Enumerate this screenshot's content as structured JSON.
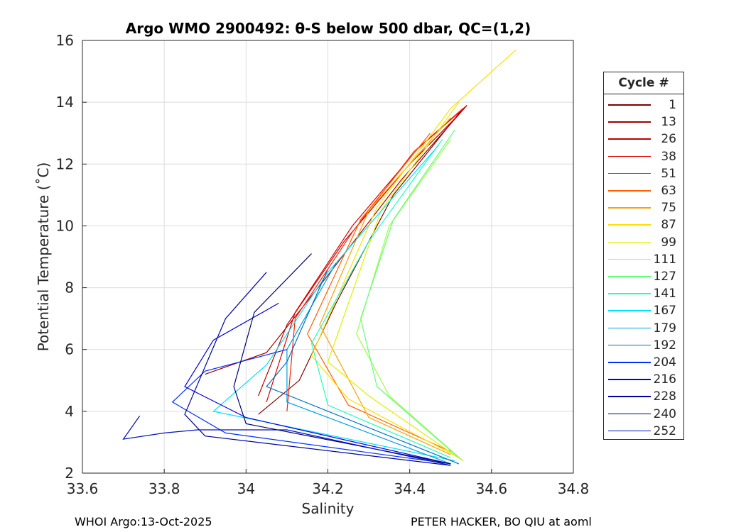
{
  "chart_data": {
    "type": "line",
    "title": "Argo WMO 2900492: θ-S below 500 dbar,  QC=(1,2)",
    "xlabel": "Salinity",
    "ylabel": "Potential Temperature (˚C)",
    "xlim": [
      33.6,
      34.8
    ],
    "ylim": [
      2,
      16
    ],
    "xticks": [
      "33.6",
      "33.8",
      "34",
      "34.2",
      "34.4",
      "34.6",
      "34.8"
    ],
    "yticks": [
      "2",
      "4",
      "6",
      "8",
      "10",
      "12",
      "14",
      "16"
    ],
    "grid": true,
    "legend": {
      "title": "Cycle #",
      "placement": "right outside",
      "entries": [
        "1",
        "13",
        "26",
        "38",
        "51",
        "63",
        "75",
        "87",
        "99",
        "111",
        "127",
        "141",
        "167",
        "179",
        "192",
        "204",
        "216",
        "228",
        "240",
        "252"
      ]
    },
    "series": [
      {
        "name": "1",
        "color": "#800000",
        "points": [
          [
            34.03,
            3.9
          ],
          [
            34.13,
            5.0
          ],
          [
            34.22,
            7.5
          ],
          [
            34.36,
            11.0
          ],
          [
            34.53,
            13.8
          ]
        ]
      },
      {
        "name": "13",
        "color": "#a00000",
        "points": [
          [
            33.9,
            5.2
          ],
          [
            34.05,
            5.9
          ],
          [
            34.2,
            8.4
          ],
          [
            34.38,
            11.5
          ],
          [
            34.54,
            13.9
          ]
        ]
      },
      {
        "name": "26",
        "color": "#c00000",
        "points": [
          [
            34.03,
            4.5
          ],
          [
            34.1,
            6.8
          ],
          [
            34.24,
            9.5
          ],
          [
            34.4,
            12.0
          ],
          [
            34.52,
            13.6
          ]
        ]
      },
      {
        "name": "38",
        "color": "#e00000",
        "points": [
          [
            34.05,
            4.3
          ],
          [
            34.12,
            7.2
          ],
          [
            34.26,
            10.0
          ],
          [
            34.42,
            12.5
          ],
          [
            34.54,
            13.9
          ]
        ]
      },
      {
        "name": "51",
        "color": "#ff2000",
        "points": [
          [
            34.1,
            4.0
          ],
          [
            34.12,
            7.0
          ],
          [
            34.26,
            9.8
          ],
          [
            34.41,
            12.4
          ],
          [
            34.53,
            13.8
          ]
        ]
      },
      {
        "name": "63",
        "color": "#ff6000",
        "points": [
          [
            34.5,
            2.7
          ],
          [
            34.25,
            4.2
          ],
          [
            34.15,
            6.5
          ],
          [
            34.28,
            10.2
          ],
          [
            34.45,
            13.0
          ]
        ]
      },
      {
        "name": "75",
        "color": "#ffa000",
        "points": [
          [
            34.5,
            2.6
          ],
          [
            34.3,
            3.8
          ],
          [
            34.18,
            6.8
          ],
          [
            34.3,
            10.5
          ],
          [
            34.5,
            13.5
          ]
        ]
      },
      {
        "name": "87",
        "color": "#ffe000",
        "points": [
          [
            34.52,
            2.5
          ],
          [
            34.25,
            4.4
          ],
          [
            34.16,
            5.8
          ],
          [
            34.32,
            10.6
          ],
          [
            34.5,
            13.8
          ],
          [
            34.66,
            15.7
          ]
        ]
      },
      {
        "name": "99",
        "color": "#e0f000",
        "points": [
          [
            34.53,
            2.4
          ],
          [
            34.3,
            4.5
          ],
          [
            34.2,
            5.6
          ],
          [
            34.33,
            10.5
          ],
          [
            34.52,
            14.0
          ]
        ]
      },
      {
        "name": "111",
        "color": "#a0ff40",
        "points": [
          [
            34.53,
            2.4
          ],
          [
            34.35,
            4.5
          ],
          [
            34.27,
            6.5
          ],
          [
            34.35,
            10.0
          ],
          [
            34.5,
            12.8
          ]
        ]
      },
      {
        "name": "127",
        "color": "#60ff80",
        "points": [
          [
            34.52,
            2.5
          ],
          [
            34.32,
            4.8
          ],
          [
            34.28,
            7.0
          ],
          [
            34.36,
            10.2
          ],
          [
            34.51,
            13.1
          ]
        ]
      },
      {
        "name": "141",
        "color": "#20ffc0",
        "points": [
          [
            34.5,
            2.5
          ],
          [
            34.2,
            4.2
          ],
          [
            34.16,
            6.2
          ],
          [
            34.3,
            9.5
          ],
          [
            34.48,
            12.8
          ]
        ]
      },
      {
        "name": "167",
        "color": "#00e0ff",
        "points": [
          [
            34.51,
            2.4
          ],
          [
            33.92,
            4.0
          ],
          [
            34.05,
            5.5
          ],
          [
            34.2,
            8.5
          ],
          [
            34.47,
            12.6
          ]
        ]
      },
      {
        "name": "179",
        "color": "#00a0e0",
        "points": [
          [
            34.5,
            2.3
          ],
          [
            34.1,
            4.3
          ],
          [
            34.1,
            6.0
          ],
          [
            34.22,
            8.8
          ]
        ]
      },
      {
        "name": "192",
        "color": "#0070c0",
        "points": [
          [
            34.52,
            2.3
          ],
          [
            34.05,
            4.8
          ],
          [
            34.1,
            5.6
          ],
          [
            34.2,
            8.6
          ]
        ]
      },
      {
        "name": "204",
        "color": "#0030ff",
        "points": [
          [
            34.5,
            2.3
          ],
          [
            33.95,
            3.3
          ],
          [
            33.82,
            4.3
          ],
          [
            33.9,
            5.3
          ],
          [
            34.1,
            6.0
          ]
        ]
      },
      {
        "name": "216",
        "color": "#0000e0",
        "points": [
          [
            34.5,
            2.3
          ],
          [
            34.0,
            3.8
          ],
          [
            33.85,
            4.8
          ],
          [
            33.92,
            6.3
          ],
          [
            34.08,
            7.5
          ]
        ]
      },
      {
        "name": "228",
        "color": "#0000a0",
        "points": [
          [
            34.5,
            2.25
          ],
          [
            33.9,
            3.2
          ],
          [
            33.85,
            3.9
          ],
          [
            33.95,
            7.0
          ],
          [
            34.05,
            8.5
          ]
        ]
      },
      {
        "name": "240",
        "color": "#000070",
        "points": [
          [
            34.5,
            2.3
          ],
          [
            34.0,
            3.6
          ],
          [
            33.97,
            4.8
          ],
          [
            34.02,
            7.2
          ],
          [
            34.16,
            9.1
          ]
        ]
      },
      {
        "name": "252",
        "color": "#0010c0",
        "points": [
          [
            34.5,
            2.25
          ],
          [
            34.1,
            3.4
          ],
          [
            33.88,
            3.4
          ],
          [
            33.8,
            3.3
          ],
          [
            33.7,
            3.1
          ],
          [
            33.74,
            3.85
          ]
        ]
      }
    ]
  },
  "footer": {
    "left": "WHOI Argo:13-Oct-2025",
    "right": "PETER HACKER, BO QIU at aoml"
  }
}
